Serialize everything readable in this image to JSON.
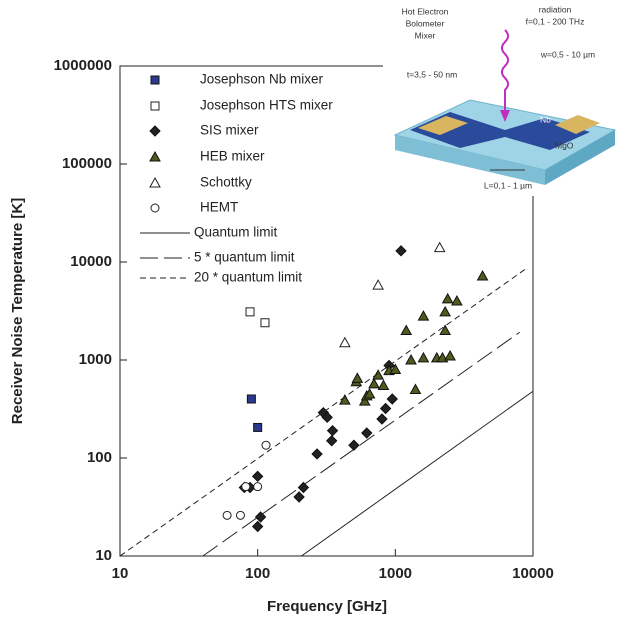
{
  "chart_data": {
    "type": "scatter",
    "xlabel": "Frequency [GHz]",
    "ylabel": "Receiver Noise Temperature [K]",
    "xlim": [
      10,
      10000
    ],
    "ylim": [
      10,
      1000000
    ],
    "xlog": true,
    "ylog": true,
    "xticks": [
      10,
      100,
      1000,
      10000
    ],
    "yticks": [
      10,
      100,
      1000,
      10000,
      100000,
      1000000
    ],
    "legend": "upper left",
    "series": [
      {
        "name": "Josephson Nb mixer",
        "color": "#2b3a8c",
        "marker": "square",
        "filled": true,
        "x": [
          90,
          100
        ],
        "values": [
          400,
          205
        ]
      },
      {
        "name": "Josephson HTS mixer",
        "color": "#222222",
        "marker": "square",
        "filled": false,
        "x": [
          88,
          113
        ],
        "values": [
          3100,
          2400
        ]
      },
      {
        "name": "SIS mixer",
        "color": "#222222",
        "marker": "diamond",
        "filled": true,
        "x": [
          80,
          88,
          100,
          100,
          105,
          200,
          215,
          270,
          300,
          320,
          350,
          345,
          500,
          620,
          800,
          850,
          950,
          900,
          1100
        ],
        "values": [
          50,
          50,
          65,
          20,
          25,
          40,
          50,
          110,
          290,
          260,
          190,
          150,
          135,
          180,
          250,
          320,
          400,
          880,
          13000
        ]
      },
      {
        "name": "HEB mixer",
        "color": "#4f5a1e",
        "marker": "triangle",
        "filled": true,
        "x": [
          430,
          520,
          530,
          600,
          620,
          650,
          700,
          750,
          820,
          900,
          1000,
          1200,
          1300,
          1400,
          1600,
          1600,
          2000,
          2200,
          2300,
          2300,
          2400,
          2500,
          2800,
          4300
        ],
        "values": [
          390,
          600,
          650,
          380,
          430,
          450,
          570,
          700,
          550,
          780,
          800,
          2000,
          1000,
          500,
          2800,
          1050,
          1050,
          1050,
          2000,
          3100,
          4200,
          1100,
          4000,
          7200
        ]
      },
      {
        "name": "Schottky",
        "color": "#222222",
        "marker": "triangle",
        "filled": false,
        "x": [
          430,
          750,
          2100
        ],
        "values": [
          1500,
          5800,
          14000
        ]
      },
      {
        "name": "HEMT",
        "color": "#222222",
        "marker": "circle",
        "filled": false,
        "x": [
          60,
          75,
          82,
          100,
          115
        ],
        "values": [
          26,
          26,
          51,
          51,
          135
        ]
      },
      {
        "name": "Quantum limit",
        "color": "#222222",
        "line_style": "solid",
        "x": [
          208,
          10000
        ],
        "values": [
          10,
          480
        ]
      },
      {
        "name": "5 * quantum limit",
        "color": "#222222",
        "line_style": "longdash",
        "x": [
          40,
          8000
        ],
        "values": [
          10,
          1920
        ]
      },
      {
        "name": "20 * quantum limit",
        "color": "#222222",
        "line_style": "dash",
        "x": [
          10,
          9000
        ],
        "values": [
          10,
          8640
        ]
      }
    ]
  },
  "inset": {
    "title": [
      "Hot Electron",
      "Bolometer",
      "Mixer"
    ],
    "radiation": [
      "radiation",
      "f=0,1 - 200 THz"
    ],
    "width": "w=0,5 - 10 µm",
    "thickness": "t=3,5 - 50 nm",
    "film": "Nb",
    "substrate": "MgO",
    "length": "L=0,1 - 1 µm"
  }
}
